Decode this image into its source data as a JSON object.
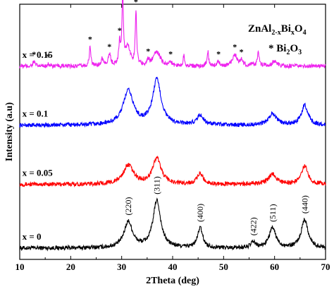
{
  "chart_data": {
    "type": "line",
    "xlabel": "2Theta (deg)",
    "ylabel": "Intensity (a.u)",
    "xlim": [
      10,
      70
    ],
    "xticks": [
      "10",
      "20",
      "30",
      "40",
      "50",
      "60",
      "70"
    ],
    "grid": false,
    "legend": {
      "position": "top-right",
      "formula_main": "ZnAl",
      "formula_sub1": "2-x",
      "formula_mid": "Bi",
      "formula_sub2": "x",
      "formula_end": "O",
      "formula_sub3": "4",
      "marker_label_main": "* Bi",
      "marker_label_sub1": "2",
      "marker_label_mid": "O",
      "marker_label_sub2": "3"
    },
    "peak_marker": "*",
    "series": [
      {
        "name": "x = 0",
        "color": "#000000",
        "baseline": 0.0,
        "peaks": [
          [
            31.3,
            0.55,
            1.0
          ],
          [
            36.9,
            1.0,
            0.9
          ],
          [
            45.4,
            0.42,
            0.6
          ],
          [
            55.8,
            0.12,
            0.5
          ],
          [
            59.6,
            0.42,
            0.8
          ],
          [
            65.9,
            0.6,
            0.8
          ]
        ],
        "hkl": [
          {
            "x": 31.3,
            "label": "(220)"
          },
          {
            "x": 36.9,
            "label": "(311)"
          },
          {
            "x": 45.4,
            "label": "(400)"
          },
          {
            "x": 55.8,
            "label": "(422)"
          },
          {
            "x": 59.6,
            "label": "(511)"
          },
          {
            "x": 65.9,
            "label": "(440)"
          }
        ]
      },
      {
        "name": "x = 0.05",
        "color": "#ff0000",
        "baseline": 1.35,
        "peaks": [
          [
            31.3,
            0.4,
            1.2
          ],
          [
            36.9,
            0.55,
            1.0
          ],
          [
            45.4,
            0.22,
            0.7
          ],
          [
            59.6,
            0.22,
            0.9
          ],
          [
            65.9,
            0.38,
            0.8
          ]
        ]
      },
      {
        "name": "x = 0.1",
        "color": "#0000ff",
        "baseline": 2.6,
        "peaks": [
          [
            31.3,
            0.72,
            1.2
          ],
          [
            36.9,
            0.95,
            1.0
          ],
          [
            45.4,
            0.2,
            0.8
          ],
          [
            59.6,
            0.25,
            0.9
          ],
          [
            65.9,
            0.42,
            0.8
          ]
        ]
      },
      {
        "name": "x = 0.15",
        "color": "#ee22ee",
        "baseline": 3.85,
        "peaks": [
          [
            12.8,
            0.1,
            0.25
          ],
          [
            15.6,
            0.06,
            0.2
          ],
          [
            23.8,
            0.42,
            0.18
          ],
          [
            26.2,
            0.15,
            0.3
          ],
          [
            27.6,
            0.24,
            0.3
          ],
          [
            29.6,
            0.45,
            0.2
          ],
          [
            30.2,
            1.48,
            0.16
          ],
          [
            31.2,
            0.4,
            0.6
          ],
          [
            32.8,
            1.15,
            0.16
          ],
          [
            35.2,
            0.1,
            0.3
          ],
          [
            36.9,
            0.3,
            0.8
          ],
          [
            39.6,
            0.08,
            0.3
          ],
          [
            42.2,
            0.22,
            0.18
          ],
          [
            46.9,
            0.32,
            0.18
          ],
          [
            49.0,
            0.1,
            0.3
          ],
          [
            52.2,
            0.25,
            0.5
          ],
          [
            53.5,
            0.12,
            0.3
          ],
          [
            55.6,
            0.06,
            0.3
          ],
          [
            56.8,
            0.32,
            0.2
          ],
          [
            60.0,
            0.1,
            0.6
          ]
        ],
        "star_positions": [
          12.8,
          15.6,
          23.8,
          27.6,
          29.6,
          32.8,
          35.2,
          39.6,
          49.0,
          52.2,
          53.5
        ]
      }
    ]
  }
}
